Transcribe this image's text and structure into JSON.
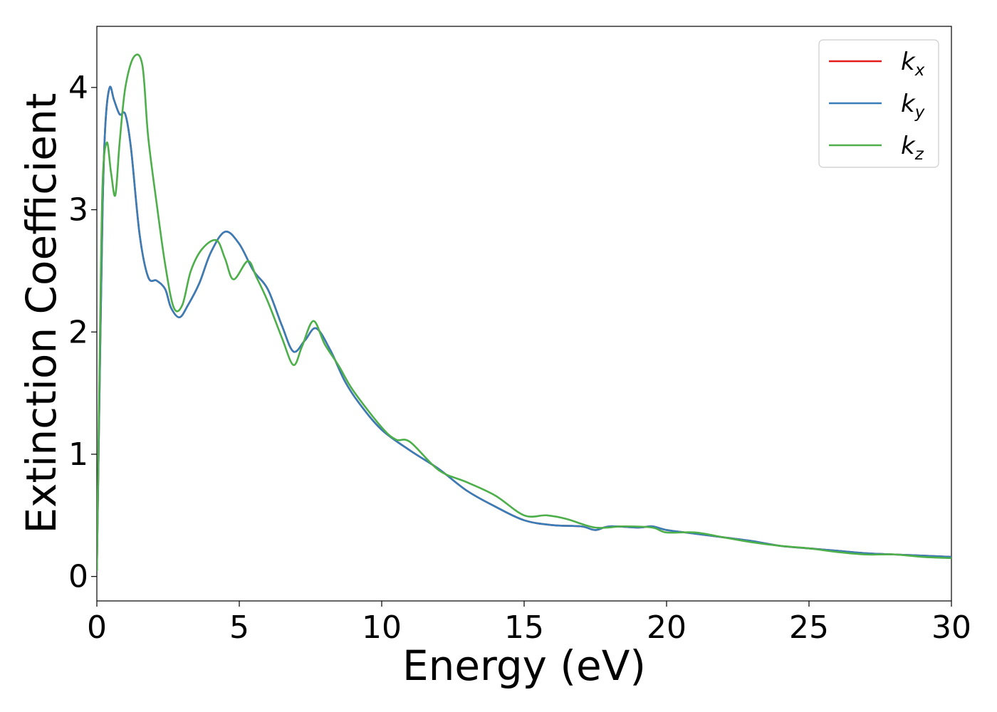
{
  "chart_data": {
    "type": "line",
    "xlabel": "Energy (eV)",
    "ylabel": "Extinction Coefficient",
    "xlim": [
      0,
      30
    ],
    "ylim": [
      -0.2,
      4.5
    ],
    "xticks": [
      0,
      5,
      10,
      15,
      20,
      25,
      30
    ],
    "yticks": [
      0,
      1,
      2,
      3,
      4
    ],
    "grid": false,
    "legend_position": "top-right",
    "series": [
      {
        "name": "k_x",
        "label_base": "k",
        "label_sub": "x",
        "color": "#e41a1c",
        "x": [
          0,
          0.1,
          0.2,
          0.3,
          0.45,
          0.6,
          0.8,
          1.0,
          1.2,
          1.5,
          1.8,
          2.1,
          2.4,
          2.6,
          2.9,
          3.2,
          3.6,
          4.0,
          4.5,
          5.0,
          5.5,
          6.0,
          6.5,
          6.9,
          7.3,
          7.7,
          8.2,
          8.7,
          9.2,
          10.0,
          11.0,
          12.0,
          13.0,
          14.0,
          15.0,
          16.0,
          17.0,
          17.5,
          18.0,
          19.0,
          19.5,
          20.0,
          21.0,
          22.0,
          23.0,
          24.0,
          25.0,
          26.0,
          27.0,
          28.0,
          29.0,
          30.0
        ],
        "y": [
          0.05,
          1.6,
          3.0,
          3.7,
          4.0,
          3.9,
          3.78,
          3.78,
          3.5,
          2.8,
          2.45,
          2.42,
          2.35,
          2.2,
          2.12,
          2.22,
          2.4,
          2.65,
          2.82,
          2.72,
          2.5,
          2.35,
          2.05,
          1.84,
          1.93,
          2.03,
          1.85,
          1.6,
          1.42,
          1.2,
          1.03,
          0.88,
          0.7,
          0.57,
          0.46,
          0.42,
          0.41,
          0.38,
          0.41,
          0.4,
          0.41,
          0.38,
          0.35,
          0.32,
          0.29,
          0.25,
          0.23,
          0.21,
          0.19,
          0.18,
          0.17,
          0.16
        ]
      },
      {
        "name": "k_y",
        "label_base": "k",
        "label_sub": "y",
        "color": "#377eb8",
        "x": [
          0,
          0.1,
          0.2,
          0.3,
          0.45,
          0.6,
          0.8,
          1.0,
          1.2,
          1.5,
          1.8,
          2.1,
          2.4,
          2.6,
          2.9,
          3.2,
          3.6,
          4.0,
          4.5,
          5.0,
          5.5,
          6.0,
          6.5,
          6.9,
          7.3,
          7.7,
          8.2,
          8.7,
          9.2,
          10.0,
          11.0,
          12.0,
          13.0,
          14.0,
          15.0,
          16.0,
          17.0,
          17.5,
          18.0,
          19.0,
          19.5,
          20.0,
          21.0,
          22.0,
          23.0,
          24.0,
          25.0,
          26.0,
          27.0,
          28.0,
          29.0,
          30.0
        ],
        "y": [
          0.05,
          1.6,
          3.0,
          3.7,
          4.0,
          3.9,
          3.78,
          3.78,
          3.5,
          2.8,
          2.45,
          2.42,
          2.35,
          2.2,
          2.12,
          2.22,
          2.4,
          2.65,
          2.82,
          2.72,
          2.5,
          2.35,
          2.05,
          1.84,
          1.93,
          2.03,
          1.85,
          1.6,
          1.42,
          1.2,
          1.03,
          0.88,
          0.7,
          0.57,
          0.46,
          0.42,
          0.41,
          0.38,
          0.41,
          0.4,
          0.41,
          0.38,
          0.35,
          0.32,
          0.29,
          0.25,
          0.23,
          0.21,
          0.19,
          0.18,
          0.17,
          0.16
        ]
      },
      {
        "name": "k_z",
        "label_base": "k",
        "label_sub": "z",
        "color": "#4daf4a",
        "x": [
          0,
          0.1,
          0.2,
          0.35,
          0.5,
          0.65,
          0.8,
          1.0,
          1.3,
          1.6,
          1.8,
          2.1,
          2.4,
          2.7,
          3.0,
          3.3,
          3.7,
          4.2,
          4.5,
          4.8,
          5.3,
          5.6,
          6.0,
          6.5,
          6.9,
          7.2,
          7.6,
          8.0,
          8.5,
          9.0,
          10.0,
          10.5,
          11.0,
          12.0,
          13.0,
          14.0,
          15.0,
          15.8,
          16.5,
          17.5,
          18.5,
          19.5,
          20.0,
          21.0,
          22.0,
          23.0,
          24.0,
          25.0,
          26.0,
          27.0,
          28.0,
          29.0,
          30.0
        ],
        "y": [
          0.05,
          1.8,
          3.2,
          3.55,
          3.3,
          3.12,
          3.55,
          4.0,
          4.25,
          4.18,
          3.6,
          3.05,
          2.55,
          2.2,
          2.22,
          2.5,
          2.68,
          2.75,
          2.6,
          2.43,
          2.58,
          2.45,
          2.25,
          1.95,
          1.73,
          1.88,
          2.09,
          1.9,
          1.72,
          1.52,
          1.22,
          1.12,
          1.1,
          0.87,
          0.77,
          0.66,
          0.5,
          0.5,
          0.47,
          0.4,
          0.41,
          0.4,
          0.36,
          0.36,
          0.32,
          0.28,
          0.25,
          0.23,
          0.2,
          0.18,
          0.18,
          0.16,
          0.15
        ]
      }
    ]
  }
}
